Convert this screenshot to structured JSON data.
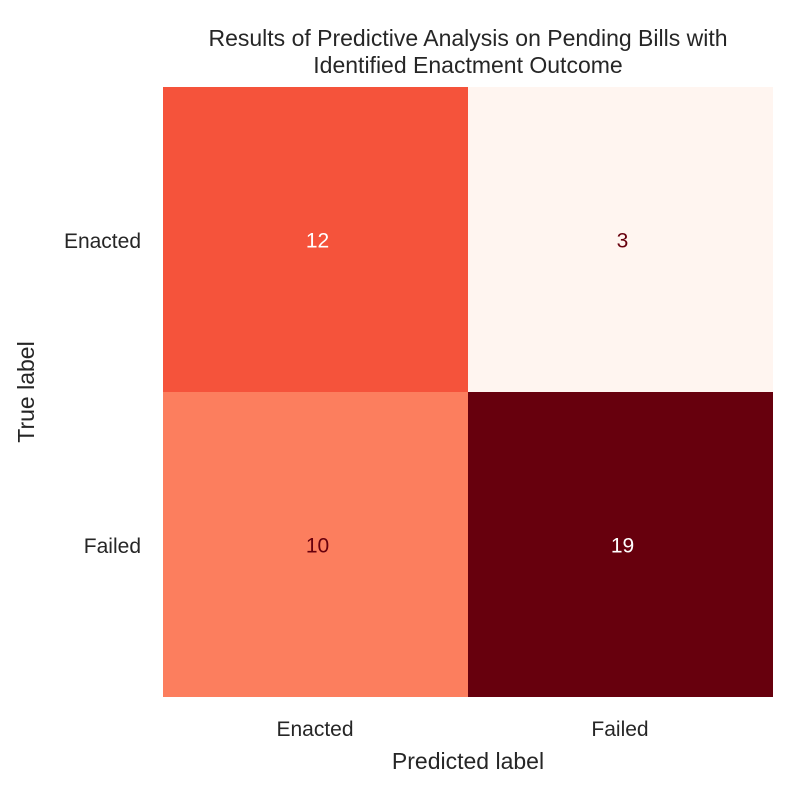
{
  "chart_data": {
    "type": "heatmap",
    "title": "Results of Predictive Analysis on Pending Bills with Identified Enactment Outcome",
    "title_lines": [
      "Results of Predictive Analysis on Pending Bills with",
      "Identified Enactment Outcome"
    ],
    "xlabel": "Predicted label",
    "ylabel": "True label",
    "x_categories": [
      "Enacted",
      "Failed"
    ],
    "y_categories": [
      "Enacted",
      "Failed"
    ],
    "values": [
      [
        12,
        3
      ],
      [
        10,
        19
      ]
    ],
    "colormap": "Reds",
    "grid": false,
    "colors": {
      "low": "#fff5f0",
      "high": "#67000d",
      "dark_text": "#67000d",
      "light_text": "#ffffff"
    }
  }
}
